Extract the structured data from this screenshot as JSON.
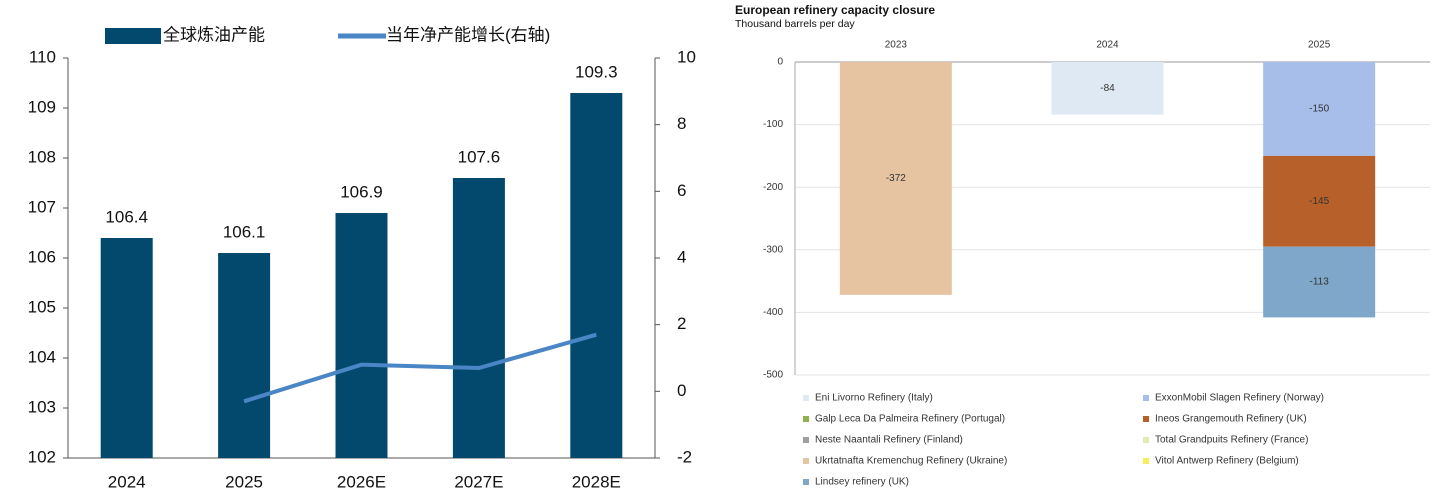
{
  "chart_data": [
    {
      "type": "bar",
      "categories": [
        "2024",
        "2025",
        "2026E",
        "2027E",
        "2028E"
      ],
      "series": [
        {
          "name": "全球炼油产能",
          "color": "#03496d",
          "type": "bar",
          "values": [
            106.4,
            106.1,
            106.9,
            107.6,
            109.3
          ]
        },
        {
          "name": "当年净产能增长(右轴)",
          "color": "#4a86c5",
          "type": "line",
          "axis": "y2",
          "values": [
            null,
            -0.3,
            0.8,
            0.7,
            1.7
          ]
        }
      ],
      "ylim": [
        102,
        110
      ],
      "yticks": [
        102,
        103,
        104,
        105,
        106,
        107,
        108,
        109,
        110
      ],
      "y2lim": [
        -2,
        10
      ],
      "y2ticks": [
        -2,
        0,
        2,
        4,
        6,
        8,
        10
      ]
    },
    {
      "type": "stacked_bar",
      "title": "European refinery capacity closure",
      "subtitle": "Thousand barrels per day",
      "categories": [
        "2023",
        "2024",
        "2025"
      ],
      "series": [
        {
          "name": "Eni Livorno Refinery (Italy)",
          "color": "#dfe9f3",
          "values": [
            null,
            -84,
            null
          ]
        },
        {
          "name": "ExxonMobil Slagen Refinery (Norway)",
          "color": "#a7bdea",
          "values": [
            null,
            null,
            -150
          ]
        },
        {
          "name": "Galp Leca Da Palmeira Refinery (Portugal)",
          "color": "#8fb04a",
          "values": [
            null,
            null,
            null
          ]
        },
        {
          "name": "Ineos Grangemouth Refinery (UK)",
          "color": "#b8602a",
          "values": [
            null,
            null,
            -145
          ]
        },
        {
          "name": "Neste Naantali Refinery (Finland)",
          "color": "#a0a0a0",
          "values": [
            null,
            null,
            null
          ]
        },
        {
          "name": "Total Grandpuits Refinery (France)",
          "color": "#e3e9b5",
          "values": [
            null,
            null,
            null
          ]
        },
        {
          "name": "Ukrtatnafta Kremenchug Refinery (Ukraine)",
          "color": "#e6c4a2",
          "values": [
            -372,
            null,
            null
          ]
        },
        {
          "name": "Vitol Antwerp Refinery (Belgium)",
          "color": "#f4f05a",
          "values": [
            null,
            null,
            null
          ]
        },
        {
          "name": "Lindsey refinery (UK)",
          "color": "#7fa7c9",
          "values": [
            null,
            null,
            -113
          ]
        }
      ],
      "ylim": [
        -500,
        0
      ],
      "yticks": [
        0,
        -100,
        -200,
        -300,
        -400,
        -500
      ],
      "grid": true
    }
  ]
}
